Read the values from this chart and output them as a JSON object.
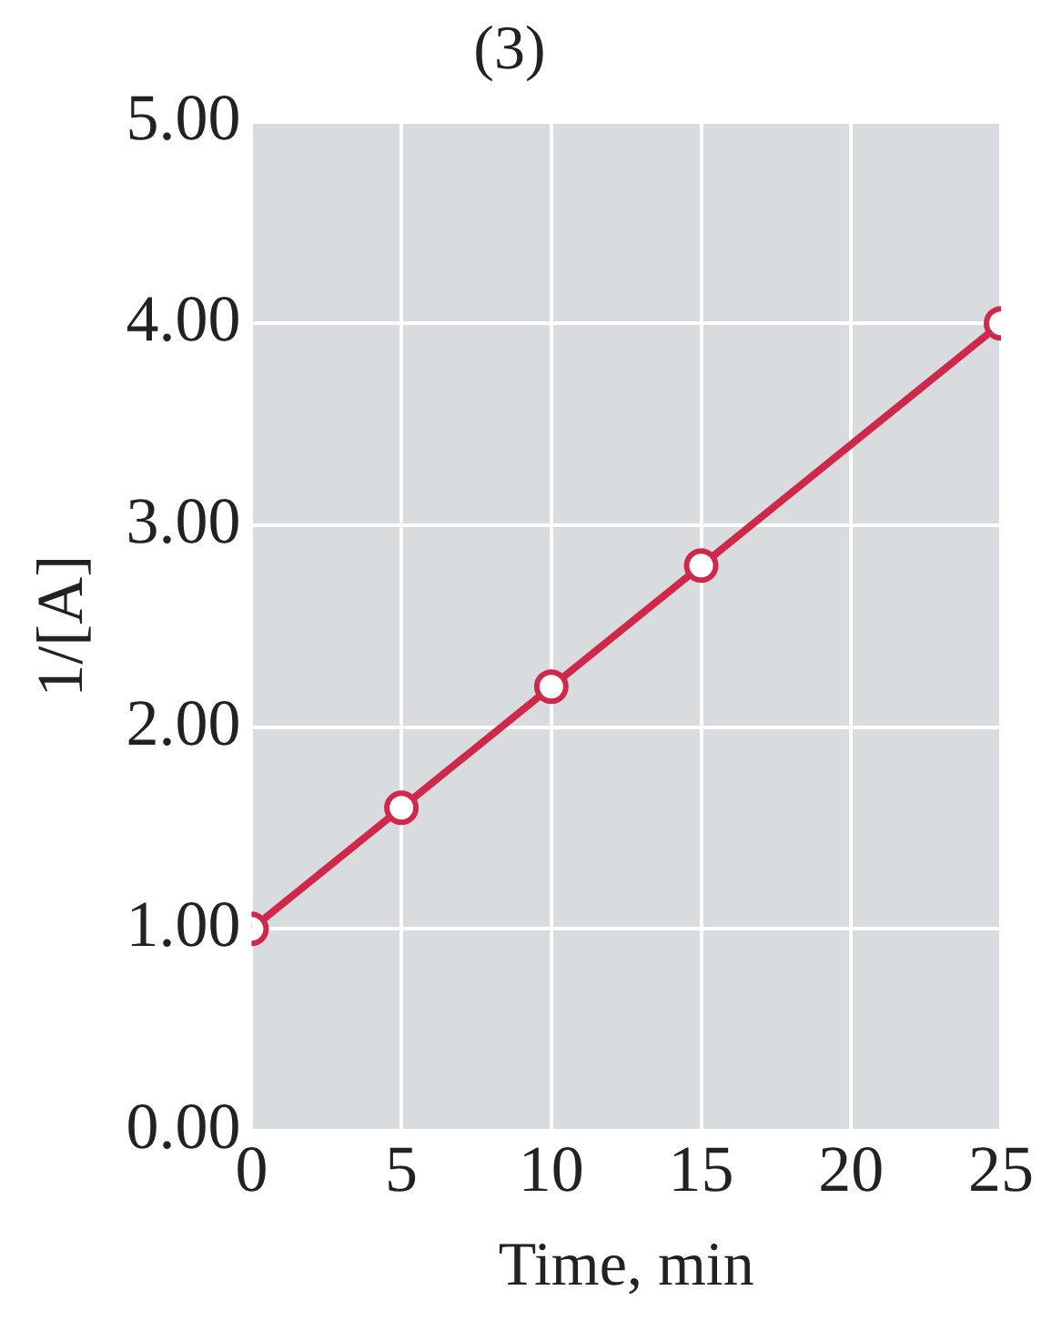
{
  "chart_data": {
    "type": "line",
    "title": "(3)",
    "xlabel": "Time, min",
    "ylabel": "1/[A]",
    "x": [
      0,
      5,
      10,
      15,
      25
    ],
    "series": [
      {
        "color": "#d0284a",
        "values": [
          1.0,
          1.6,
          2.2,
          2.8,
          4.0
        ]
      }
    ],
    "xlim": [
      0,
      25
    ],
    "xticks": [
      0,
      5,
      10,
      15,
      20,
      25
    ],
    "ylim": [
      0,
      5
    ],
    "yticks": [
      {
        "value": 0,
        "label": "0.00"
      },
      {
        "value": 1,
        "label": "1.00"
      },
      {
        "value": 2,
        "label": "2.00"
      },
      {
        "value": 3,
        "label": "3.00"
      },
      {
        "value": 4,
        "label": "4.00"
      },
      {
        "value": 5,
        "label": "5.00"
      }
    ],
    "grid": true,
    "legend": false,
    "marker": "circle",
    "line_style": "solid"
  }
}
